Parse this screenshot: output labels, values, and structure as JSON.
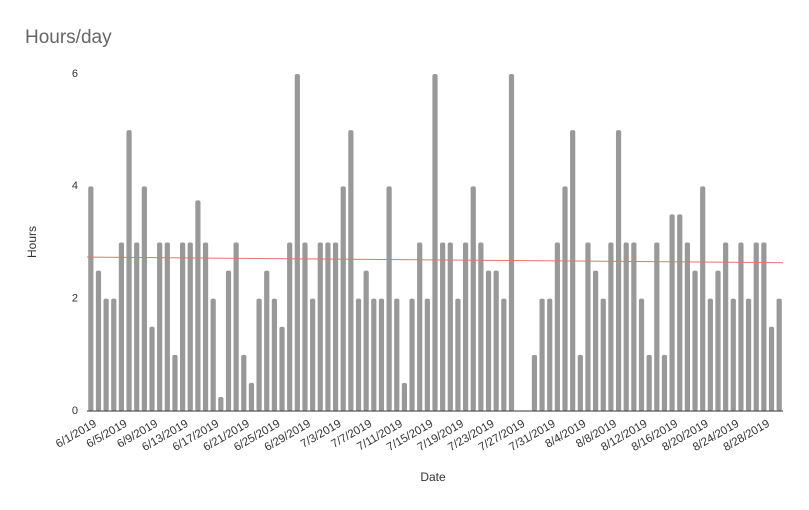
{
  "chart_data": {
    "type": "bar",
    "title": "Hours/day",
    "x_label": "Date",
    "y_label": "Hours",
    "categories": [
      "6/1/2019",
      null,
      null,
      null,
      "6/5/2019",
      null,
      null,
      null,
      "6/9/2019",
      null,
      null,
      null,
      "6/13/2019",
      null,
      null,
      null,
      "6/17/2019",
      null,
      null,
      null,
      "6/21/2019",
      null,
      null,
      null,
      "6/25/2019",
      null,
      null,
      null,
      "6/29/2019",
      null,
      null,
      null,
      "7/3/2019",
      null,
      null,
      null,
      "7/7/2019",
      null,
      null,
      null,
      "7/11/2019",
      null,
      null,
      null,
      "7/15/2019",
      null,
      null,
      null,
      "7/19/2019",
      null,
      null,
      null,
      "7/23/2019",
      null,
      null,
      null,
      "7/27/2019",
      null,
      null,
      null,
      "7/31/2019",
      null,
      null,
      null,
      "8/4/2019",
      null,
      null,
      null,
      "8/8/2019",
      null,
      null,
      null,
      "8/12/2019",
      null,
      null,
      null,
      "8/16/2019",
      null,
      null,
      null,
      "8/20/2019",
      null,
      null,
      null,
      "8/24/2019",
      null,
      null,
      null,
      "8/28/2019",
      null,
      null
    ],
    "values": [
      4,
      2.5,
      2,
      2,
      3,
      5,
      3,
      4,
      1.5,
      3,
      3,
      1,
      3,
      3,
      3.75,
      3,
      2,
      0.25,
      2.5,
      3,
      1,
      0.5,
      2,
      2.5,
      2,
      1.5,
      3,
      6,
      3,
      2,
      3,
      3,
      3,
      4,
      5,
      2,
      2.5,
      2,
      2,
      4,
      2,
      0.5,
      2,
      3,
      2,
      6,
      3,
      3,
      2,
      3,
      4,
      3,
      2.5,
      2.5,
      2,
      6,
      0,
      0,
      1,
      2,
      2,
      3,
      4,
      5,
      1,
      3,
      2.5,
      2,
      3,
      5,
      3,
      3,
      2,
      1,
      3,
      1,
      3.5,
      3.5,
      3,
      2.5,
      4,
      2,
      2.5,
      3,
      2,
      3,
      2,
      3,
      3,
      1.5,
      2
    ],
    "color": "#999999",
    "trendline": {
      "color": "#e57373",
      "values": [
        2.74,
        2.64
      ]
    },
    "ylim": [
      0,
      6
    ],
    "yticks": [
      0,
      2,
      4,
      6
    ],
    "grid": false
  }
}
